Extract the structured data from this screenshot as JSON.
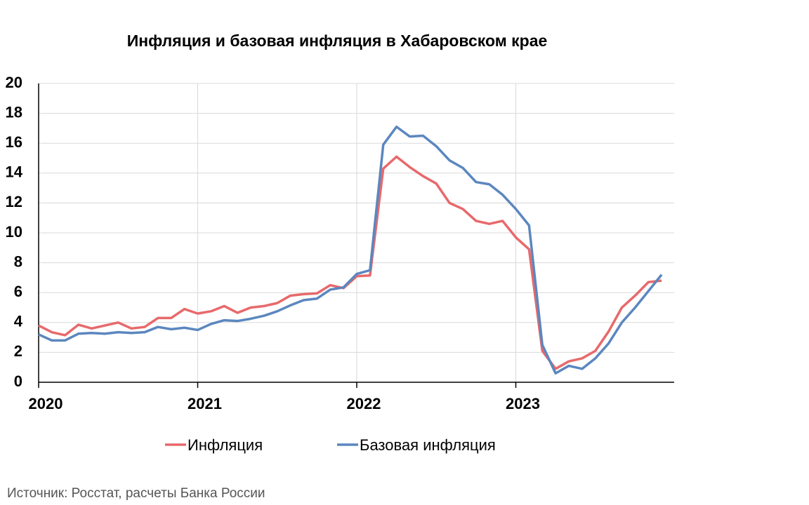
{
  "chart_data": {
    "type": "line",
    "title": "Инфляция и базовая инфляция в Хабаровском крае",
    "source": "Источник: Росстат, расчеты Банка России",
    "categories": [
      "2020",
      null,
      null,
      null,
      null,
      null,
      null,
      null,
      null,
      null,
      null,
      null,
      "2021",
      null,
      null,
      null,
      null,
      null,
      null,
      null,
      null,
      null,
      null,
      null,
      "2022",
      null,
      null,
      null,
      null,
      null,
      null,
      null,
      null,
      null,
      null,
      null,
      "2023",
      null,
      null,
      null,
      null,
      null,
      null,
      null,
      null,
      null,
      null,
      null
    ],
    "series": [
      {
        "name": "Инфляция",
        "color": "#e8696b",
        "values": [
          3.8,
          3.35,
          3.15,
          3.85,
          3.6,
          3.8,
          4.0,
          3.6,
          3.7,
          4.3,
          4.3,
          4.9,
          4.6,
          4.75,
          5.1,
          4.65,
          5.0,
          5.1,
          5.3,
          5.8,
          5.9,
          5.95,
          6.5,
          6.3,
          7.1,
          7.15,
          14.3,
          15.1,
          14.4,
          13.8,
          13.3,
          12.0,
          11.6,
          10.8,
          10.6,
          10.8,
          9.7,
          8.9,
          2.1,
          0.9,
          1.4,
          1.6,
          2.1,
          3.4,
          5.0,
          5.8,
          6.7,
          6.8
        ]
      },
      {
        "name": "Базовая инфляция",
        "color": "#5b87bf",
        "values": [
          3.2,
          2.8,
          2.8,
          3.25,
          3.3,
          3.25,
          3.35,
          3.3,
          3.35,
          3.7,
          3.55,
          3.65,
          3.5,
          3.9,
          4.15,
          4.1,
          4.25,
          4.45,
          4.75,
          5.15,
          5.5,
          5.6,
          6.2,
          6.35,
          7.25,
          7.5,
          15.9,
          17.1,
          16.45,
          16.5,
          15.8,
          14.85,
          14.35,
          13.4,
          13.25,
          12.55,
          11.6,
          10.5,
          2.5,
          0.6,
          1.1,
          0.9,
          1.6,
          2.6,
          4.0,
          5.0,
          6.1,
          7.2
        ]
      }
    ],
    "ylim": [
      0,
      20
    ],
    "yticks": [
      0,
      2,
      4,
      6,
      8,
      10,
      12,
      14,
      16,
      18,
      20
    ],
    "grid": true
  }
}
